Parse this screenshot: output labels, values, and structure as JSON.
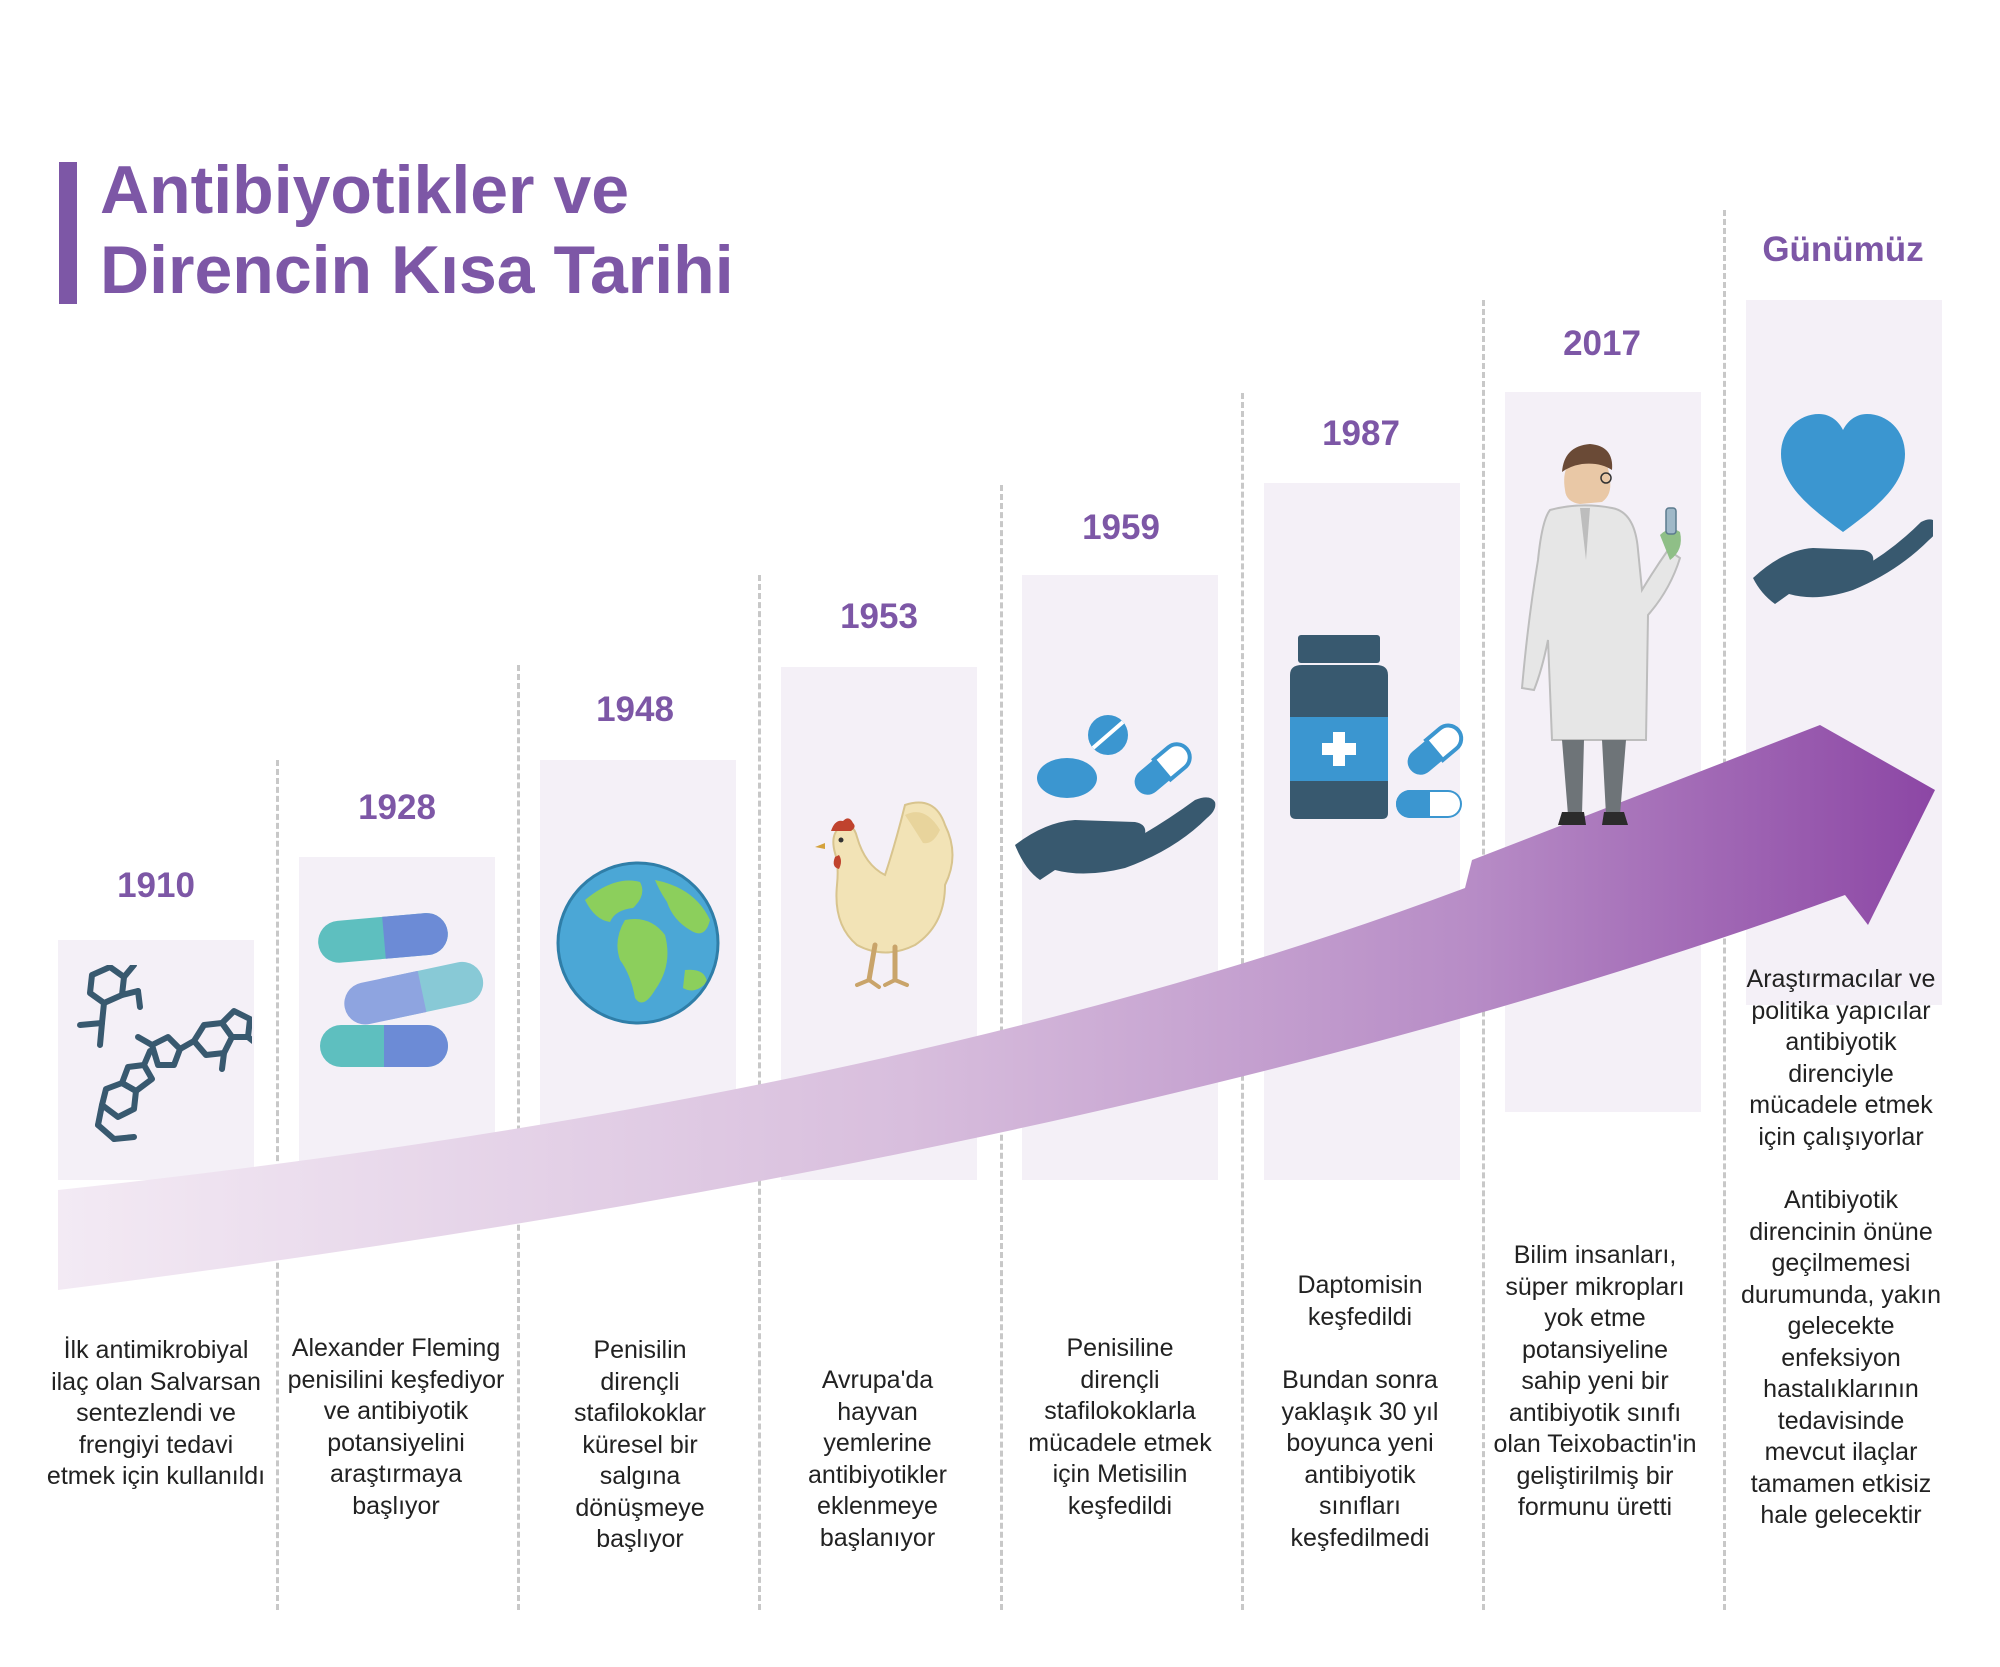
{
  "title": {
    "line1": "Antibiyotikler ve",
    "line2": "Direncin Kısa Tarihi"
  },
  "colors": {
    "accent": "#7d57a6",
    "card": "#f4f0f7",
    "icon_dark": "#38596f",
    "icon_blue": "#3b96d0",
    "arrow_start": "#f3eaf4",
    "arrow_end": "#8b45a4"
  },
  "events": [
    {
      "year": "1910",
      "icon": "molecule-icon",
      "lines": [
        "İlk antimikrobiyal ilaç olan Salvarsan sentezlendi ve frengiyi tedavi etmek için kullanıldı"
      ]
    },
    {
      "year": "1928",
      "icon": "capsules-icon",
      "lines": [
        "Alexander Fleming penisilini keşfediyor ve antibiyotik potansiyelini araştırmaya başlıyor"
      ]
    },
    {
      "year": "1948",
      "icon": "globe-icon",
      "lines": [
        "Penisilin dirençli stafilokoklar küresel bir salgına dönüşmeye başlıyor"
      ]
    },
    {
      "year": "1953",
      "icon": "chicken-icon",
      "lines": [
        "Avrupa'da hayvan yemlerine antibiyotikler eklenmeye başlanıyor"
      ]
    },
    {
      "year": "1959",
      "icon": "hand-with-pills-icon",
      "lines": [
        "Penisiline dirençli stafilokoklarla mücadele etmek için Metisilin keşfedildi"
      ]
    },
    {
      "year": "1987",
      "icon": "medicine-bottle-icon",
      "lines": [
        "Daptomisin keşfedildi",
        "Bundan sonra yaklaşık 30 yıl boyunca yeni antibiyotik sınıfları keşfedilmedi"
      ]
    },
    {
      "year": "2017",
      "icon": "scientist-icon",
      "lines": [
        "Bilim insanları, süper mikropları yok etme potansiyeline sahip yeni bir antibiyotik sınıfı olan Teixobactin'in geliştirilmiş bir formunu üretti"
      ]
    },
    {
      "year": "Günümüz",
      "icon": "heart-in-hand-icon",
      "lines": [
        "Araştırmacılar ve politika yapıcılar antibiyotik direnciyle mücadele etmek için çalışıyorlar",
        "Antibiyotik direncinin önüne geçilmemesi durumunda, yakın gelecekte enfeksiyon hastalıklarının tedavisinde mevcut ilaçlar tamamen etkisiz hale gelecektir"
      ]
    }
  ]
}
